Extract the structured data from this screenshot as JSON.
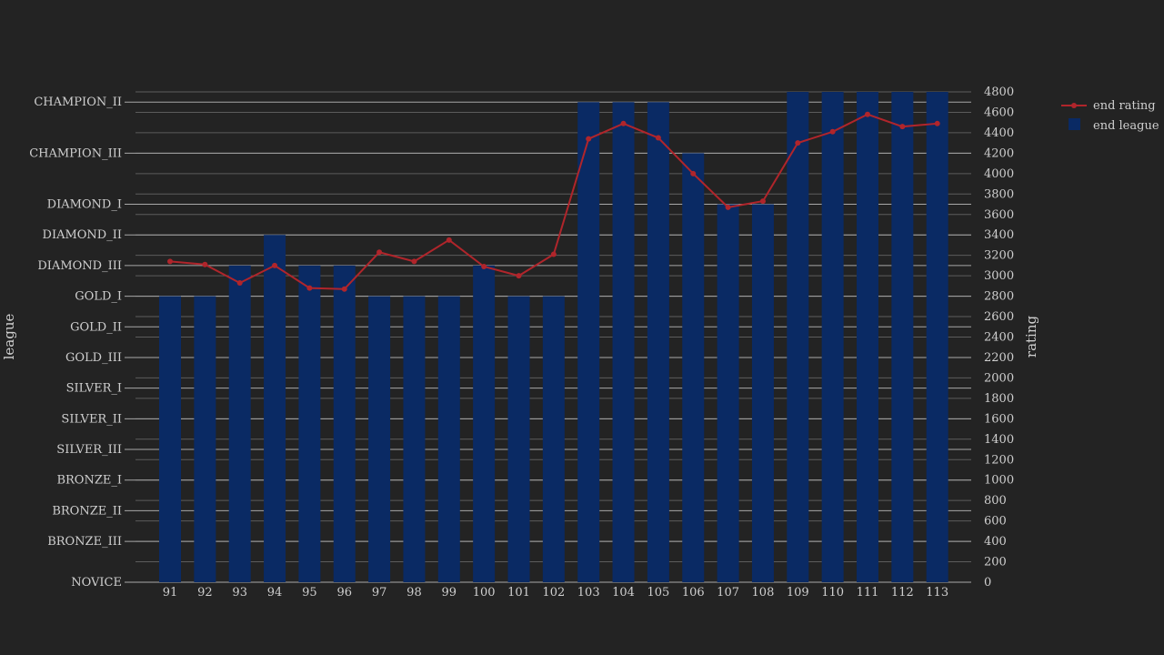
{
  "chart_data": {
    "type": "bar",
    "x": [
      91,
      92,
      93,
      94,
      95,
      96,
      97,
      98,
      99,
      100,
      101,
      102,
      103,
      104,
      105,
      106,
      107,
      108,
      109,
      110,
      111,
      112,
      113
    ],
    "categories": [
      "91",
      "92",
      "93",
      "94",
      "95",
      "96",
      "97",
      "98",
      "99",
      "100",
      "101",
      "102",
      "103",
      "104",
      "105",
      "106",
      "107",
      "108",
      "109",
      "110",
      "111",
      "112",
      "113"
    ],
    "left_axis": {
      "label": "league",
      "ticks": [
        "NOVICE",
        "BRONZE_III",
        "BRONZE_II",
        "BRONZE_I",
        "SILVER_III",
        "SILVER_II",
        "SILVER_I",
        "GOLD_III",
        "GOLD_II",
        "GOLD_I",
        "DIAMOND_III",
        "DIAMOND_II",
        "DIAMOND_I",
        "CHAMPION_III",
        "CHAMPION_II"
      ]
    },
    "right_axis": {
      "label": "rating",
      "ylim": [
        0,
        4800
      ],
      "ticks": [
        0,
        200,
        400,
        600,
        800,
        1000,
        1200,
        1400,
        1600,
        1800,
        2000,
        2200,
        2400,
        2600,
        2800,
        3000,
        3200,
        3400,
        3600,
        3800,
        4000,
        4200,
        4400,
        4600,
        4800
      ]
    },
    "series": [
      {
        "name": "end league",
        "type": "bar",
        "axis": "left",
        "values": [
          "GOLD_I",
          "GOLD_I",
          "DIAMOND_III",
          "DIAMOND_II",
          "DIAMOND_III",
          "DIAMOND_III",
          "GOLD_I",
          "GOLD_I",
          "GOLD_I",
          "DIAMOND_III",
          "GOLD_I",
          "GOLD_I",
          "CHAMPION_II",
          "CHAMPION_II",
          "CHAMPION_II",
          "CHAMPION_III",
          "DIAMOND_I",
          "DIAMOND_I",
          "CHAMPION_I",
          "CHAMPION_I",
          "CHAMPION_I",
          "CHAMPION_I",
          "CHAMPION_I"
        ],
        "color": "#0a2a64"
      },
      {
        "name": "end rating",
        "type": "line",
        "axis": "right",
        "values": [
          3140,
          3110,
          2930,
          3100,
          2880,
          2870,
          3230,
          3140,
          3350,
          3090,
          3000,
          3210,
          4340,
          4490,
          4350,
          4000,
          3670,
          3730,
          4300,
          4410,
          4580,
          4460,
          4490
        ],
        "color": "#b0252b"
      }
    ],
    "grid": true,
    "legend": "top-right"
  }
}
